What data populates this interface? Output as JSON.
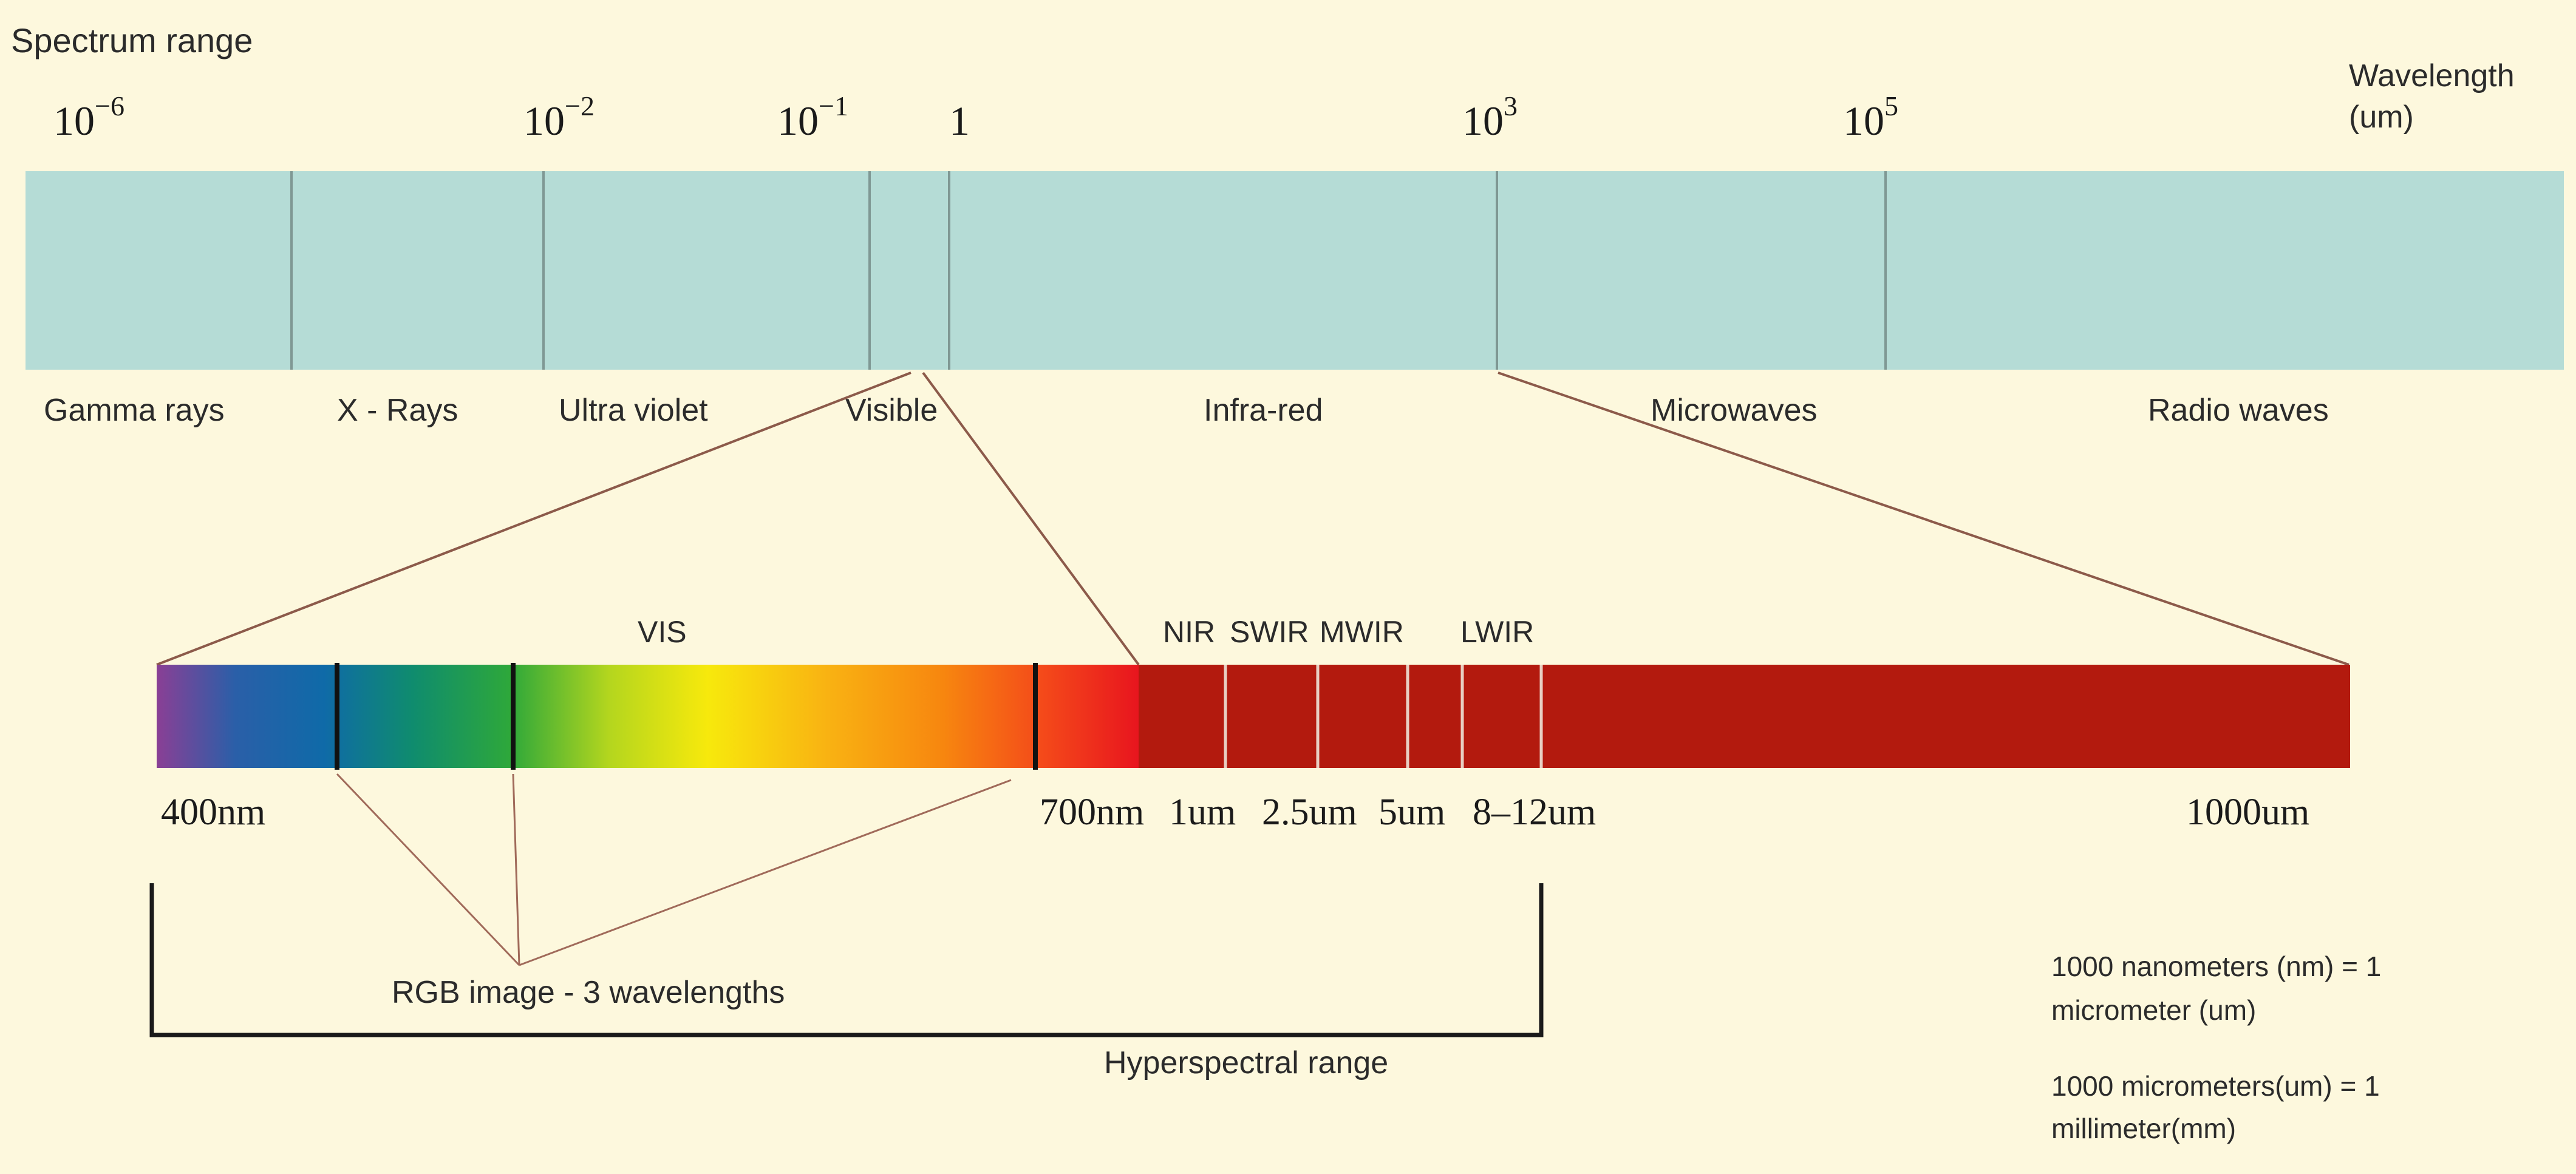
{
  "title": "Spectrum range",
  "axis_unit_label": [
    "Wavelength",
    "(um)"
  ],
  "top_ticks": [
    {
      "base": "10",
      "exp": "−6"
    },
    {
      "base": "10",
      "exp": "−2"
    },
    {
      "base": "10",
      "exp": "−1"
    },
    {
      "base": "1",
      "exp": ""
    },
    {
      "base": "10",
      "exp": "3"
    },
    {
      "base": "10",
      "exp": "5"
    }
  ],
  "bands": [
    "Gamma rays",
    "X - Rays",
    "Ultra violet",
    "Visible",
    "Infra-red",
    "Microwaves",
    "Radio waves"
  ],
  "sub_bands": {
    "vis": "VIS",
    "ir": [
      "NIR",
      "SWIR",
      "MWIR",
      "LWIR"
    ]
  },
  "bottom_ticks": [
    "400nm",
    "700nm",
    "1um",
    "2.5um",
    "5um",
    "8–12um",
    "1000um"
  ],
  "rgb_label": "RGB image - 3 wavelengths",
  "hyperspectral_label": "Hyperspectral range",
  "notes": [
    "1000 nanometers (nm) = 1",
    "micrometer (um)",
    "1000 micrometers(um) = 1",
    "millimeter(mm)"
  ],
  "colors": {
    "background": "#fdf8dd",
    "top_bar": "#b5dcd6",
    "ir_bar": "#b31a0e",
    "line": "#8c5a4a",
    "bracket": "#1a1a1a"
  }
}
